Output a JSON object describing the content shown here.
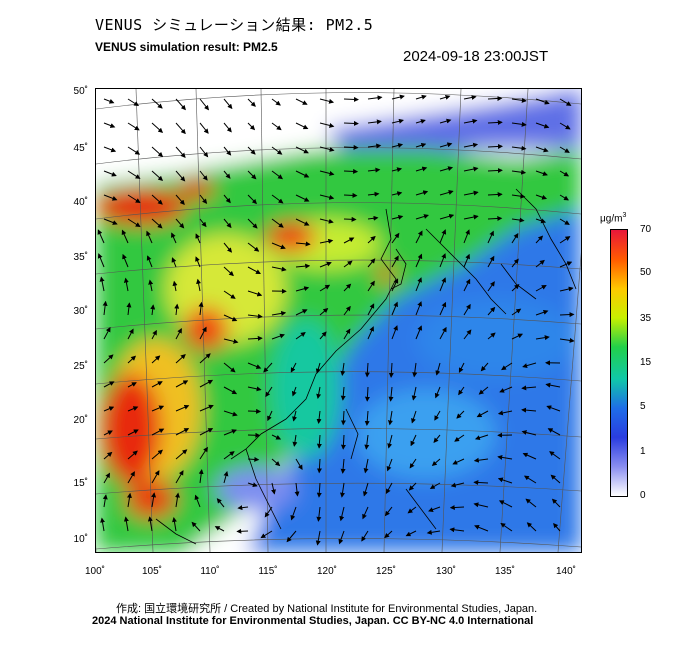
{
  "header": {
    "title_jp": "VENUS シミュレーション結果: PM2.5",
    "title_en": "VENUS simulation result: PM2.5",
    "timestamp": "2024-09-18 23:00JST"
  },
  "map": {
    "lon_labels": [
      "100˚",
      "105˚",
      "110˚",
      "115˚",
      "120˚",
      "125˚",
      "130˚",
      "135˚",
      "140˚"
    ],
    "lat_labels": [
      "50˚",
      "45˚",
      "40˚",
      "35˚",
      "30˚",
      "25˚",
      "20˚",
      "15˚",
      "10˚"
    ],
    "lon_range": [
      100,
      141
    ],
    "lat_range": [
      9,
      51
    ],
    "colors": {
      "ocean_low": "#2a6fe0",
      "land_mid": "#2fc93a",
      "high": "#e02010"
    }
  },
  "colorbar": {
    "unit": "μg/m",
    "unit_sup": "3",
    "ticks": [
      "70",
      "50",
      "35",
      "15",
      "5",
      "1",
      "0"
    ],
    "stops": [
      "#e8173a",
      "#ff5a00",
      "#ffc800",
      "#c8f000",
      "#22d04a",
      "#10c8a8",
      "#1e6de8",
      "#2a3de0",
      "#8a8ef0",
      "#ffffff"
    ]
  },
  "footer": {
    "credit_jp": "作成: 国立環境研究所 / Created by National Institute for Environmental Studies, Japan.",
    "credit_en": "2024 National Institute for Environmental Studies, Japan. CC BY-NC 4.0 International"
  }
}
